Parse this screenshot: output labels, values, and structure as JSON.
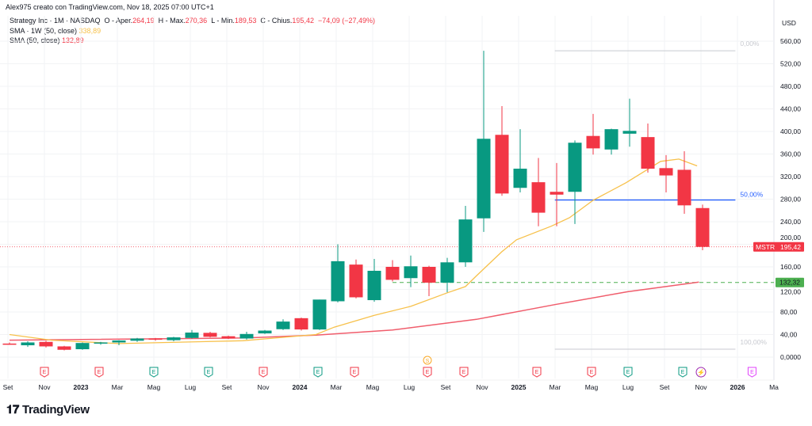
{
  "header": {
    "credit": "Alex975 creato con TradingView.com, Nov 18, 2025 07:00 UTC+1"
  },
  "legend": {
    "symbol": "Strategy Inc · 1M · NASDAQ",
    "o_label": "O - Aper.",
    "o": "264,19",
    "h_label": "H - Max.",
    "h": "270,36",
    "l_label": "L - Min.",
    "l": "189,53",
    "c_label": "C - Chius.",
    "c": "195,42",
    "change": "−74,09 (−27,49%)",
    "sma1_label": "SMA · 1W (50, close)",
    "sma1_value": "338,89",
    "sma2_label": "SMA (50, close)",
    "sma2_value": "132,89"
  },
  "logo": {
    "text": "TradingView"
  },
  "colors": {
    "up": "#089981",
    "down": "#f23645",
    "sma_1w": "#f7c14b",
    "sma": "#f05d6c",
    "fib_mid": "#2962ff",
    "support": "#4caf50"
  },
  "chart_data": {
    "type": "candlestick",
    "currency_label": "USD",
    "ylim": [
      0,
      580
    ],
    "y_ticks": [
      "0,0000",
      "40,00",
      "80,00",
      "120,00",
      "160,00",
      "200,00",
      "240,00",
      "280,00",
      "320,00",
      "360,00",
      "400,00",
      "440,00",
      "480,00",
      "520,00",
      "560,00"
    ],
    "x_ticks": [
      {
        "label": "Set",
        "month": "2022-09"
      },
      {
        "label": "Nov",
        "month": "2022-11"
      },
      {
        "label": "2023",
        "month": "2023-01",
        "bold": true
      },
      {
        "label": "Mar",
        "month": "2023-03"
      },
      {
        "label": "Mag",
        "month": "2023-05"
      },
      {
        "label": "Lug",
        "month": "2023-07"
      },
      {
        "label": "Set",
        "month": "2023-09"
      },
      {
        "label": "Nov",
        "month": "2023-11"
      },
      {
        "label": "2024",
        "month": "2024-01",
        "bold": true
      },
      {
        "label": "Mar",
        "month": "2024-03"
      },
      {
        "label": "Mag",
        "month": "2024-05"
      },
      {
        "label": "Lug",
        "month": "2024-07"
      },
      {
        "label": "Set",
        "month": "2024-09"
      },
      {
        "label": "Nov",
        "month": "2024-11"
      },
      {
        "label": "2025",
        "month": "2025-01",
        "bold": true
      },
      {
        "label": "Mar",
        "month": "2025-03"
      },
      {
        "label": "Mag",
        "month": "2025-05"
      },
      {
        "label": "Lug",
        "month": "2025-07"
      },
      {
        "label": "Set",
        "month": "2025-09"
      },
      {
        "label": "Nov",
        "month": "2025-11"
      },
      {
        "label": "2026",
        "month": "2026-01",
        "bold": true
      },
      {
        "label": "Ma",
        "month": "2026-03"
      }
    ],
    "start_month": "2022-09",
    "candles": [
      [
        24,
        26,
        22,
        23
      ],
      [
        21,
        28,
        18,
        26
      ],
      [
        27,
        29,
        17,
        19
      ],
      [
        19,
        20,
        12,
        13
      ],
      [
        14,
        26,
        13,
        25
      ],
      [
        25,
        27,
        22,
        26
      ],
      [
        26,
        30,
        21,
        29.5
      ],
      [
        29,
        34,
        27,
        33
      ],
      [
        33,
        34,
        29,
        31
      ],
      [
        30,
        36,
        28,
        35
      ],
      [
        34,
        48,
        33,
        43.5
      ],
      [
        43,
        45,
        35,
        36
      ],
      [
        37,
        38,
        32,
        33
      ],
      [
        33,
        45,
        31,
        41
      ],
      [
        42,
        48,
        41,
        47
      ],
      [
        49.5,
        67,
        48,
        63
      ],
      [
        69,
        70,
        47,
        49
      ],
      [
        49,
        102,
        48,
        102
      ],
      [
        99,
        200,
        97,
        170
      ],
      [
        164,
        173,
        104,
        106
      ],
      [
        101,
        174,
        98,
        153
      ],
      [
        160,
        172,
        134,
        137
      ],
      [
        140,
        180,
        124,
        161
      ],
      [
        160,
        162,
        108,
        132
      ],
      [
        132,
        176,
        115,
        168
      ],
      [
        168,
        268,
        160,
        244
      ],
      [
        246,
        543,
        222,
        387
      ],
      [
        394,
        445,
        286,
        290
      ],
      [
        300,
        404,
        292,
        334
      ],
      [
        310,
        353,
        232,
        256
      ],
      [
        293,
        344,
        232,
        288
      ],
      [
        293,
        384,
        236,
        380
      ],
      [
        392,
        431,
        359,
        370
      ],
      [
        368,
        405,
        359,
        404
      ],
      [
        396,
        458,
        373,
        401
      ],
      [
        390,
        414,
        327,
        334
      ],
      [
        335,
        358,
        292,
        322
      ],
      [
        332,
        365,
        254,
        269
      ],
      [
        264.19,
        270.36,
        189.53,
        195.42
      ]
    ],
    "sma_1w": [
      [
        0,
        40
      ],
      [
        2.3,
        30
      ],
      [
        6,
        24
      ],
      [
        12.8,
        29
      ],
      [
        16.8,
        40
      ],
      [
        17.8,
        53
      ],
      [
        20,
        74
      ],
      [
        22,
        90
      ],
      [
        24,
        114
      ],
      [
        25,
        125
      ],
      [
        25.6,
        144
      ],
      [
        27,
        187
      ],
      [
        27.8,
        208
      ],
      [
        29.7,
        232
      ],
      [
        30.7,
        247
      ],
      [
        32,
        278
      ],
      [
        33.8,
        309
      ],
      [
        35.7,
        347
      ],
      [
        36.7,
        351
      ],
      [
        37.7,
        339
      ]
    ],
    "sma": [
      [
        0,
        30
      ],
      [
        13,
        34
      ],
      [
        16.8,
        39
      ],
      [
        21,
        48
      ],
      [
        25.6,
        67
      ],
      [
        29.9,
        93
      ],
      [
        33.9,
        116
      ],
      [
        37.8,
        133
      ]
    ],
    "price_label": {
      "symbol": "MSTR",
      "value": "195,42",
      "price": 195.42
    },
    "support_label": {
      "value": "132,32",
      "price": 132.32
    },
    "fib": {
      "from_month_index": 29.9,
      "to_month_index": 39.8,
      "high": 543,
      "low": 14,
      "levels": [
        {
          "label": "0,00%",
          "ratio": 0
        },
        {
          "label": "50,00%",
          "ratio": 0.5
        },
        {
          "label": "100,00%",
          "ratio": 1
        }
      ]
    },
    "events": [
      {
        "type": "E",
        "m": 2,
        "color": "#f23645"
      },
      {
        "type": "E",
        "m": 5,
        "color": "#f23645"
      },
      {
        "type": "E",
        "m": 8,
        "color": "#089981"
      },
      {
        "type": "E",
        "m": 11,
        "color": "#089981"
      },
      {
        "type": "E",
        "m": 14,
        "color": "#f23645"
      },
      {
        "type": "E",
        "m": 17,
        "color": "#089981"
      },
      {
        "type": "E",
        "m": 19,
        "color": "#f23645"
      },
      {
        "type": "E",
        "m": 23,
        "color": "#f23645"
      },
      {
        "type": "E",
        "m": 25,
        "color": "#f23645"
      },
      {
        "type": "E",
        "m": 29,
        "color": "#f23645"
      },
      {
        "type": "E",
        "m": 32,
        "color": "#f23645"
      },
      {
        "type": "E",
        "m": 34,
        "color": "#089981"
      },
      {
        "type": "E",
        "m": 37,
        "color": "#089981"
      },
      {
        "type": "lightning",
        "m": 38,
        "color": "#9c27b0"
      },
      {
        "type": "E",
        "m": 40.8,
        "color": "#e040fb"
      },
      {
        "type": "S",
        "m": 23,
        "color": "#f9a825"
      }
    ]
  }
}
